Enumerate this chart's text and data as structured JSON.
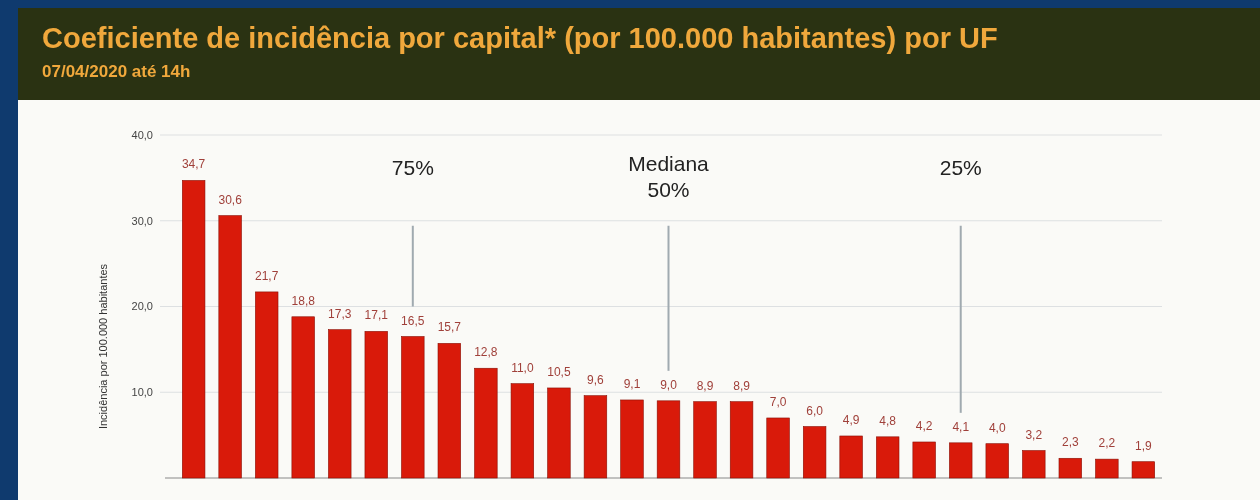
{
  "chart_data": {
    "type": "bar",
    "title": "Coeficiente de incidência por capital* (por 100.000 habitantes) por UF",
    "subtitle": "07/04/2020 até 14h",
    "ylabel": "Incidência por 100.000 habitantes",
    "categories": [
      null,
      null,
      null,
      null,
      null,
      null,
      null,
      null,
      null,
      null,
      null,
      null,
      null,
      null,
      null,
      null,
      null,
      null,
      null,
      null,
      null,
      null,
      null,
      null,
      null,
      null,
      null
    ],
    "values": [
      34.7,
      30.6,
      21.7,
      18.8,
      17.3,
      17.1,
      16.5,
      15.7,
      12.8,
      11.0,
      10.5,
      9.6,
      9.1,
      9.0,
      8.9,
      8.9,
      7.0,
      6.0,
      4.9,
      4.8,
      4.2,
      4.1,
      4.0,
      3.2,
      2.3,
      2.2,
      1.9
    ],
    "value_labels": [
      "34,7",
      "30,6",
      "21,7",
      "18,8",
      "17,3",
      "17,1",
      "16,5",
      "15,7",
      "12,8",
      "11,0",
      "10,5",
      "9,6",
      "9,1",
      "9,0",
      "8,9",
      "8,9",
      "7,0",
      "6,0",
      "4,9",
      "4,8",
      "4,2",
      "4,1",
      "4,0",
      "3,2",
      "2,3",
      "2,2",
      "1,9"
    ],
    "color": "#d91a0a",
    "ylim": [
      0,
      40
    ],
    "yticks": [
      {
        "value": 10,
        "label": "10,0"
      },
      {
        "value": 20,
        "label": "20,0"
      },
      {
        "value": 30,
        "label": "30,0"
      },
      {
        "value": 40,
        "label": "40,0"
      }
    ],
    "grid": "y",
    "annotations": [
      "75%",
      "Mediana\n50%",
      "25%"
    ]
  }
}
